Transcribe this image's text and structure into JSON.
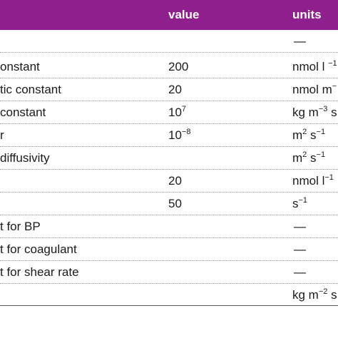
{
  "header": {
    "col_value": "value",
    "col_units": "units"
  },
  "rows": [
    {
      "description": "",
      "value": "",
      "units": "—"
    },
    {
      "description": "onstant",
      "value": "200",
      "units": "nmol l"
    },
    {
      "description": "tic constant",
      "value": "20",
      "units": "nmol m"
    },
    {
      "description": "constant",
      "value": "10",
      "units": "kg m"
    },
    {
      "description": "",
      "value": "10",
      "units": "m"
    },
    {
      "description": "diffusivity",
      "value": "",
      "units": "m"
    },
    {
      "description": "",
      "value": "20",
      "units": "nmol l"
    },
    {
      "description": "",
      "value": "50",
      "units": "s"
    },
    {
      "description": "t for BP",
      "value": "",
      "units": "—"
    },
    {
      "description": "t for coagulant",
      "value": "",
      "units": "—"
    },
    {
      "description": "t for shear rate",
      "value": "",
      "units": "—"
    },
    {
      "description": "",
      "value": "",
      "units": "kg m"
    }
  ]
}
